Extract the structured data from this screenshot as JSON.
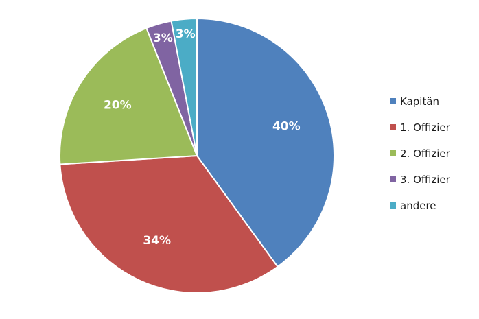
{
  "chart_data": {
    "type": "pie",
    "title": "",
    "slices": [
      {
        "label": "Kapitän",
        "value": 40,
        "display": "40%",
        "color": "#4f81bd"
      },
      {
        "label": "1. Offizier",
        "value": 34,
        "display": "34%",
        "color": "#c0504d"
      },
      {
        "label": "2. Offizier",
        "value": 20,
        "display": "20%",
        "color": "#9bbb59"
      },
      {
        "label": "3. Offizier",
        "value": 3,
        "display": "3%",
        "color": "#8064a2"
      },
      {
        "label": "andere",
        "value": 3,
        "display": "3%",
        "color": "#4bacc6"
      }
    ],
    "start": "top",
    "direction": "clockwise",
    "legend_position": "right"
  }
}
